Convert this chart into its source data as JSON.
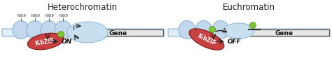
{
  "fig_width": 4.74,
  "fig_height": 1.15,
  "dpi": 100,
  "bg_color": "#ffffff",
  "panel1_title": "Heterochromatin",
  "panel2_title": "Euchromatin",
  "on_label": "ON",
  "off_label": "OFF",
  "gene_label": "Gene",
  "kbzip_label": "K-bZIP",
  "h3k9_label": "H3K9",
  "nucleosome_color": "#c2d8ec",
  "nucleosome_edge": "#8ab0cc",
  "kbzip_color": "#c94040",
  "kbzip_edge": "#8b2020",
  "blob_color": "#c8dff0",
  "blob_edge": "#96bcd4",
  "green_dot_color": "#7dc832",
  "green_dot_edge": "#4a8a10",
  "dna_bar_color": "#ddeef8",
  "dna_bar_edge": "#88aacc",
  "gene_box_color": "#e8e8e8",
  "gene_box_edge": "#555555",
  "arrow_color": "#1a1a1a",
  "text_color": "#222222",
  "on_color": "#1a1a1a",
  "off_color": "#1a1a1a",
  "title_fontsize": 8.5,
  "kbzip_fontsize": 5.5,
  "gene_fontsize": 6.5,
  "on_off_fontsize": 6.5,
  "h3k9_fontsize": 3.8
}
